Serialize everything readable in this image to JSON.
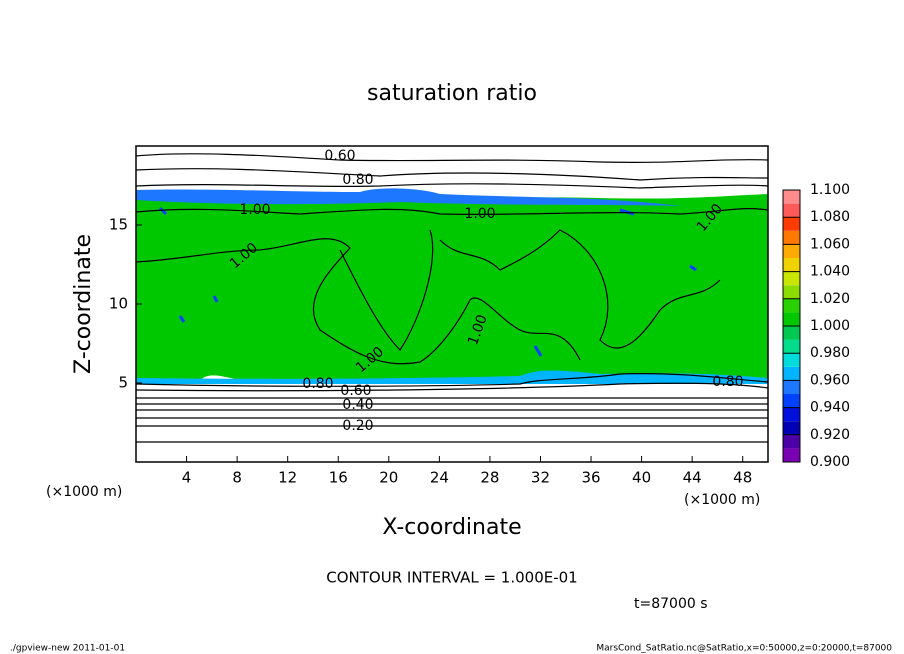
{
  "chart_data": {
    "type": "contour",
    "title": "saturation ratio",
    "x_label": "X-coordinate",
    "y_label": "Z-coordinate",
    "x_unit": "(×1000 m)",
    "y_unit": "(×1000 m)",
    "xlim": [
      0,
      50
    ],
    "ylim": [
      0,
      20
    ],
    "xticks": [
      4,
      8,
      12,
      16,
      20,
      24,
      28,
      32,
      36,
      40,
      44,
      48
    ],
    "yticks": [
      5,
      10,
      15
    ],
    "contour_levels": [
      {
        "value": 0.2,
        "label": "0.20"
      },
      {
        "value": 0.4,
        "label": "0.40"
      },
      {
        "value": 0.6,
        "label": "0.60"
      },
      {
        "value": 0.8,
        "label": "0.80"
      },
      {
        "value": 1.0,
        "label": "1.00"
      }
    ],
    "colorbar": {
      "lim": [
        0.9,
        1.1
      ],
      "ticks": [
        {
          "value": 0.9,
          "label": "0.900"
        },
        {
          "value": 0.92,
          "label": "0.920"
        },
        {
          "value": 0.94,
          "label": "0.940"
        },
        {
          "value": 0.96,
          "label": "0.960"
        },
        {
          "value": 0.98,
          "label": "0.980"
        },
        {
          "value": 1.0,
          "label": "1.000"
        },
        {
          "value": 1.02,
          "label": "1.020"
        },
        {
          "value": 1.04,
          "label": "1.040"
        },
        {
          "value": 1.06,
          "label": "1.060"
        },
        {
          "value": 1.08,
          "label": "1.080"
        },
        {
          "value": 1.1,
          "label": "1.100"
        }
      ],
      "colors": [
        "#7a00b4",
        "#4b00a8",
        "#0000b4",
        "#0010dc",
        "#0040ff",
        "#1e78ff",
        "#00b4ff",
        "#00dcdc",
        "#00dc8c",
        "#00c850",
        "#00c800",
        "#28d200",
        "#8cdc00",
        "#c8e600",
        "#f0d200",
        "#ffaa00",
        "#ff7800",
        "#ff3c00",
        "#ff5a5a",
        "#ff8c8c"
      ]
    },
    "contour_interval": "CONTOUR INTERVAL = 1.000E-01",
    "time_label": "t=87000 s",
    "footer_left": "./gpview-new   2011-01-01",
    "footer_right": "MarsCond_SatRatio.nc@SatRatio,x=0:50000,z=0:20000,t=87000"
  }
}
